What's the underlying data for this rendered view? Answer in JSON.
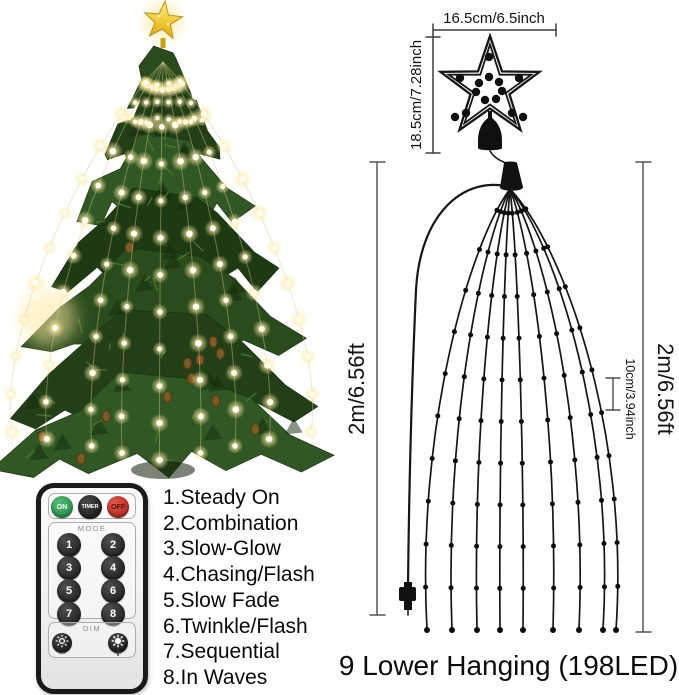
{
  "scene": {
    "background": "#ffffff",
    "tree": {
      "description": "christmas tree with star topper and cascading warm-white string lights",
      "star_color": "#f2c93c",
      "light_color": "#fffdf2",
      "light_glow_color": "#ffe9a2",
      "foliage_colors": [
        "#2a4c1d",
        "#223f17",
        "#305724",
        "#1d3a13"
      ]
    },
    "diagram": {
      "star_width_label": "16.5cm/6.5inch",
      "star_height_label": "18.5cm/7.28inch",
      "left_drop_label": "2m/6.56ft",
      "right_drop_label": "2m/6.56ft",
      "led_spacing_label": "10cm/3.94inch",
      "caption": "9 Lower Hanging (198LED)",
      "string_count": 9,
      "line_color": "#161616"
    },
    "remote": {
      "power_buttons": [
        {
          "label": "ON",
          "color": "#2e9e5b"
        },
        {
          "label": "TIMER",
          "color": "#161616"
        },
        {
          "label": "OFF",
          "color": "#c3231c"
        }
      ],
      "mode_section_label": "MODE",
      "mode_buttons": [
        "1",
        "2",
        "3",
        "4",
        "5",
        "6",
        "7",
        "8"
      ],
      "dim_section_label": "DIM",
      "dim_decrease_label": "−",
      "dim_increase_label": "+",
      "dim_icons": [
        "sun-low-icon",
        "sun-high-icon"
      ]
    },
    "mode_list": {
      "items": [
        "1.Steady On",
        "2.Combination",
        "3.Slow-Glow",
        "4.Chasing/Flash",
        "5.Slow Fade",
        "6.Twinkle/Flash",
        "7.Sequential",
        "8.In Waves"
      ]
    }
  }
}
